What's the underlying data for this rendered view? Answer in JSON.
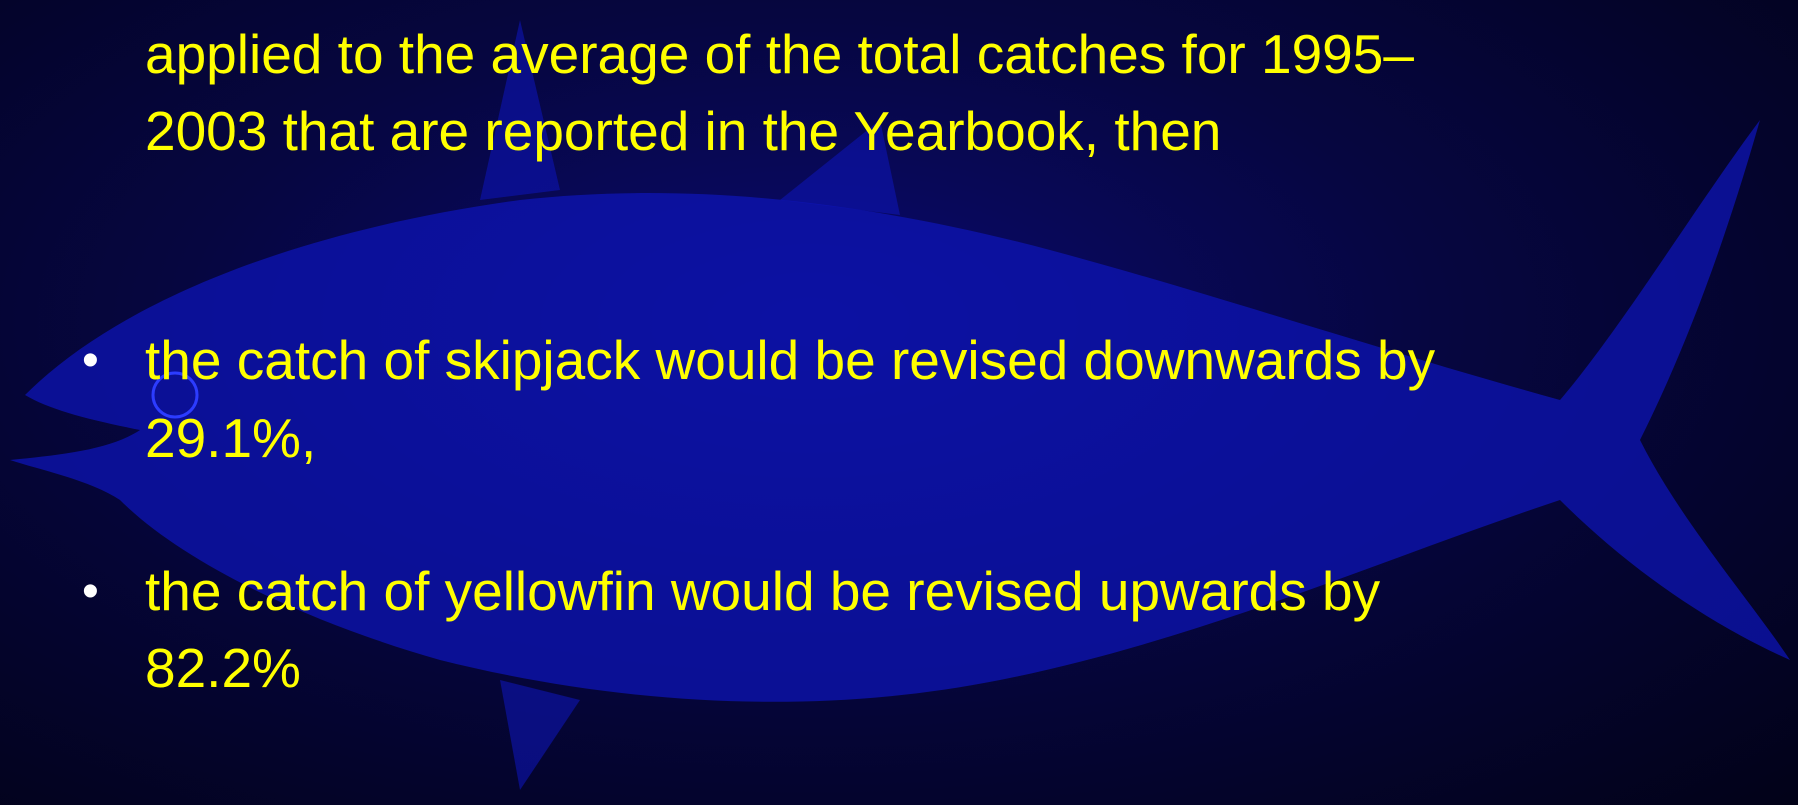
{
  "slide": {
    "intro": {
      "lines": [
        "applied to the average of the total catches for 1995–",
        "2003 that are reported in the Yearbook, then"
      ]
    },
    "marker": "•",
    "bullets": [
      {
        "lines": [
          "the catch of skipjack would be revised downwards by",
          "29.1%,"
        ]
      },
      {
        "lines": [
          "the catch of yellowfin would be revised upwards by",
          "82.2%"
        ]
      }
    ]
  }
}
